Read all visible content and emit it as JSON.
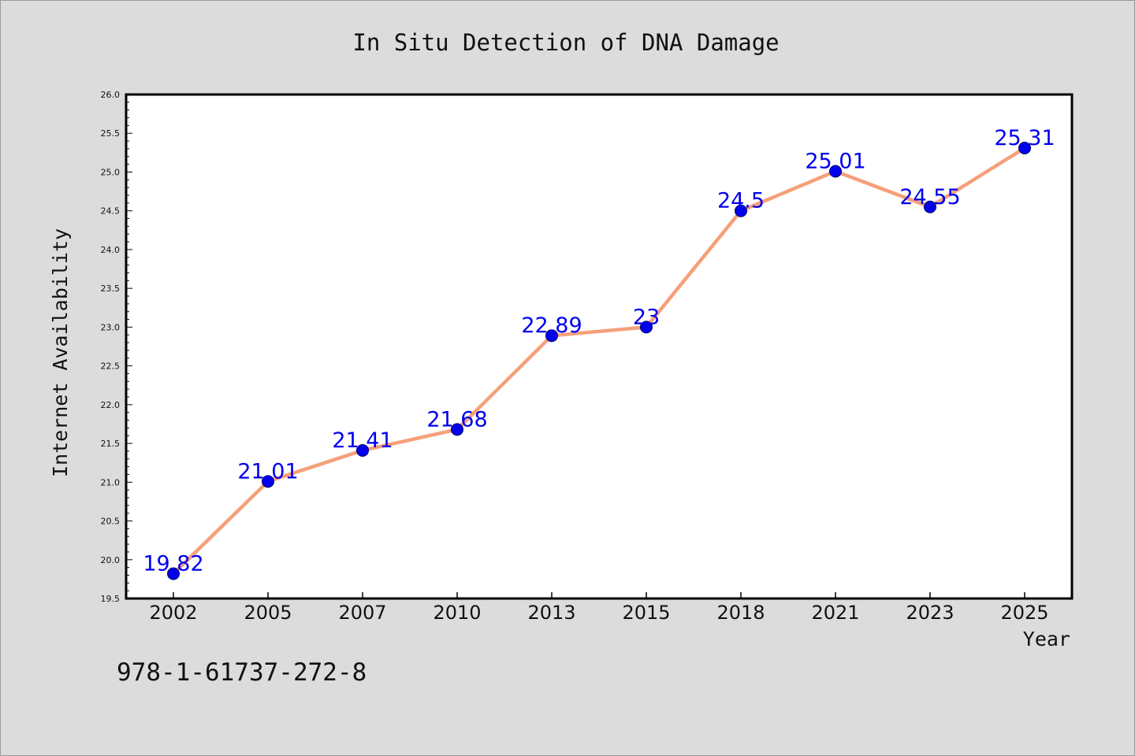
{
  "chart_data": {
    "type": "line",
    "title": "In Situ Detection of DNA Damage",
    "xlabel": "Year",
    "ylabel": "Internet Availability",
    "categories": [
      "2002",
      "2005",
      "2007",
      "2010",
      "2013",
      "2015",
      "2018",
      "2021",
      "2023",
      "2025"
    ],
    "series": [
      {
        "values": [
          19.82,
          21.01,
          21.41,
          21.68,
          22.89,
          23,
          24.5,
          25.01,
          24.55,
          25.31
        ],
        "labels": [
          "19.82",
          "21.01",
          "21.41",
          "21.68",
          "22.89",
          "23",
          "24.5",
          "25.01",
          "24.55",
          "25.31"
        ]
      }
    ],
    "ylim": [
      19.5,
      26.0
    ],
    "yticks": [
      "19.5",
      "20.0",
      "20.5",
      "21.0",
      "21.5",
      "22.0",
      "22.5",
      "23.0",
      "23.5",
      "24.0",
      "24.5",
      "25.0",
      "25.5",
      "26.0"
    ],
    "line_color": "#f5a07a",
    "marker_color": "#0000ee",
    "label_color": "#0000ee",
    "grid": false,
    "legend": "none"
  },
  "annotation": "978-1-61737-272-8"
}
